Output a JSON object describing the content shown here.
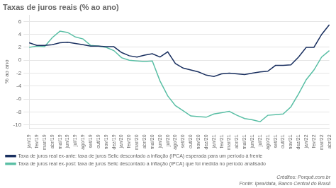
{
  "chart_data": {
    "type": "line",
    "title": "Taxas de juros reais (% ao ano)",
    "ylabel": "% ao ano",
    "categories": [
      "jan/19",
      "fev/19",
      "mar/19",
      "abr/19",
      "mai/19",
      "jun/19",
      "jul/19",
      "ago/19",
      "set/19",
      "out/19",
      "nov/19",
      "dez/19",
      "jan/20",
      "fev/20",
      "mar/20",
      "abr/20",
      "mai/20",
      "jun/20",
      "jul/20",
      "ago/20",
      "set/20",
      "out/20",
      "nov/20",
      "dez/20",
      "jan/21",
      "fev/21",
      "mar/21",
      "abr/21",
      "mai/21",
      "jun/21",
      "jul/21",
      "ago/21",
      "set/21",
      "out/21",
      "nov/21",
      "dez/21",
      "jan/22",
      "fev/22",
      "mar/22",
      "abr/22"
    ],
    "series": [
      {
        "name": "Taxa de juros real ex-ante: taxa de juros Selic descontado a inflação (IPCA) esperada para um período à frente",
        "color": "#1a3060",
        "values": [
          2.7,
          2.3,
          2.3,
          2.4,
          2.7,
          2.8,
          2.6,
          2.4,
          2.2,
          2.2,
          2.1,
          2.1,
          1.2,
          0.7,
          0.5,
          0.8,
          1.0,
          0.5,
          1.3,
          -0.5,
          -1.2,
          -1.5,
          -1.8,
          -2.3,
          -2.5,
          -2.1,
          -2.0,
          -2.1,
          -2.2,
          -2.0,
          -1.8,
          -1.7,
          -0.8,
          -0.8,
          -0.7,
          0.5,
          2.0,
          2.0,
          4.0,
          5.5
        ]
      },
      {
        "name": "Taxa de juros real ex-post: taxa de juros Selic descontado a inflação (IPCA) que foi medida no período analisado",
        "color": "#5abfa5",
        "values": [
          2.0,
          2.2,
          2.1,
          3.5,
          4.5,
          4.3,
          3.6,
          3.3,
          2.3,
          2.2,
          2.0,
          1.5,
          0.4,
          0.0,
          -0.1,
          -0.2,
          -0.1,
          -3.2,
          -5.5,
          -7.0,
          -7.8,
          -8.6,
          -8.7,
          -8.8,
          -8.3,
          -8.1,
          -7.9,
          -8.5,
          -9.0,
          -9.2,
          -9.5,
          -8.5,
          -8.4,
          -8.3,
          -7.2,
          -5.2,
          -3.0,
          -1.5,
          0.5,
          1.5
        ]
      }
    ],
    "ylim": [
      -10.5,
      7
    ],
    "yticks": [
      -10,
      -8,
      -6,
      -4,
      -2,
      0,
      2,
      4,
      6
    ],
    "grid": true,
    "legend": "lower left",
    "annotations": [
      "Créditos: Porquê.com.br",
      "Fonte: Ipea/data, Banco Central do Brasil"
    ]
  }
}
